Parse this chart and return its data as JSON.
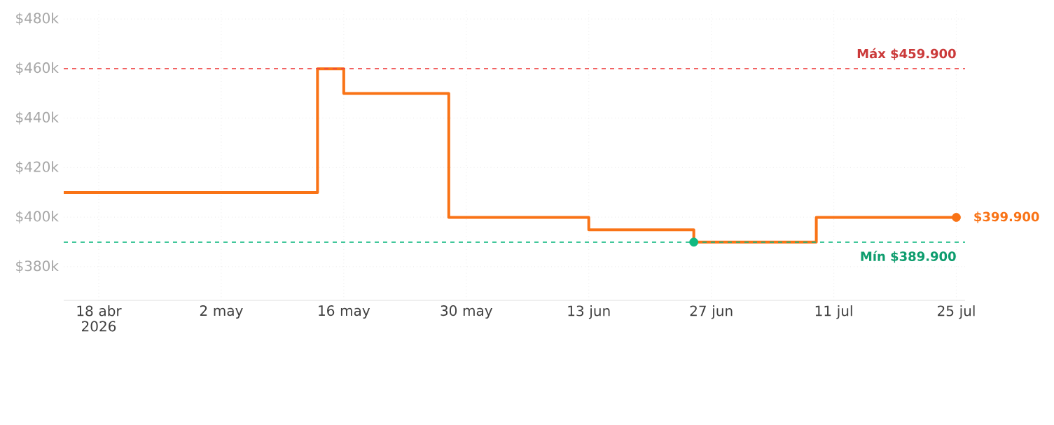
{
  "chart_data": {
    "type": "step",
    "x": [
      "2026-04-14",
      "2026-05-13",
      "2026-05-16",
      "2026-05-28",
      "2026-06-13",
      "2026-06-25",
      "2026-07-09",
      "2026-07-25"
    ],
    "series": [
      {
        "color": "#f97316",
        "values": [
          409.9,
          459.9,
          449.9,
          399.9,
          394.9,
          389.9,
          399.9,
          399.9
        ]
      },
      {
        "type": "scatter",
        "color": "#10b981",
        "x": [
          "2026-06-25"
        ],
        "values": [
          389.9
        ]
      },
      {
        "type": "scatter",
        "color": "#f97316",
        "x": [
          "2026-07-25"
        ],
        "values": [
          399.9
        ]
      }
    ],
    "xlim": [
      "2026-04-14",
      "2026-07-26"
    ],
    "xticks": [
      {
        "value": "2026-04-18",
        "label": "18 abr 2026"
      },
      {
        "value": "2026-05-02",
        "label": "2 may"
      },
      {
        "value": "2026-05-16",
        "label": "16 may"
      },
      {
        "value": "2026-05-30",
        "label": "30 may"
      },
      {
        "value": "2026-06-13",
        "label": "13 jun"
      },
      {
        "value": "2026-06-27",
        "label": "27 jun"
      },
      {
        "value": "2026-07-11",
        "label": "11 jul"
      },
      {
        "value": "2026-07-25",
        "label": "25 jul"
      }
    ],
    "ylim": [
      366.4,
      483.4
    ],
    "yticks": [
      {
        "value": 380,
        "label": "$380k"
      },
      {
        "value": 400,
        "label": "$400k"
      },
      {
        "value": 420,
        "label": "$420k"
      },
      {
        "value": 440,
        "label": "$440k"
      },
      {
        "value": 460,
        "label": "$460k"
      },
      {
        "value": 480,
        "label": "$480k"
      }
    ],
    "ref_lines": [
      {
        "axis": "y",
        "value": 459.9,
        "label": "Máx $459.900",
        "color": "#ef4444",
        "line_style": "dashed"
      },
      {
        "axis": "y",
        "value": 389.9,
        "label": "Mín $389.900",
        "color": "#10b981",
        "line_style": "dashed"
      }
    ],
    "annotations": [
      {
        "text": "$399.900",
        "x": "2026-07-25",
        "y": 399.9
      }
    ],
    "grid": true,
    "line_style": "solid"
  }
}
